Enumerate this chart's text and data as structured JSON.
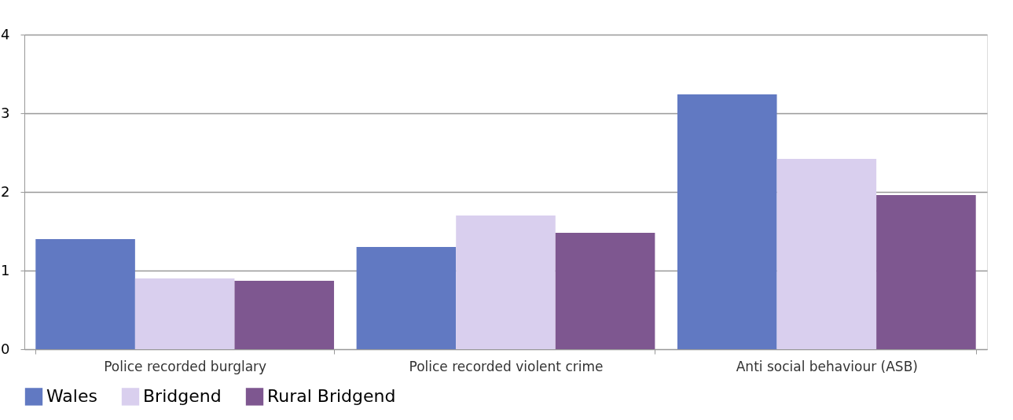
{
  "chart_data": {
    "type": "bar",
    "categories": [
      "Police recorded burglary",
      "Police recorded violent crime",
      "Anti social behaviour (ASB)"
    ],
    "series": [
      {
        "name": "Wales",
        "color": "#6179c2",
        "values": [
          1.4,
          1.3,
          3.24
        ]
      },
      {
        "name": "Bridgend",
        "color": "#d9cfee",
        "values": [
          0.9,
          1.7,
          2.42
        ]
      },
      {
        "name": "Rural Bridgend",
        "color": "#7e5790",
        "values": [
          0.87,
          1.48,
          1.96
        ]
      }
    ],
    "ylim": [
      0,
      4
    ],
    "yticks": [
      0,
      1,
      2,
      3,
      4
    ],
    "grid": "y",
    "legend": "bottom"
  }
}
